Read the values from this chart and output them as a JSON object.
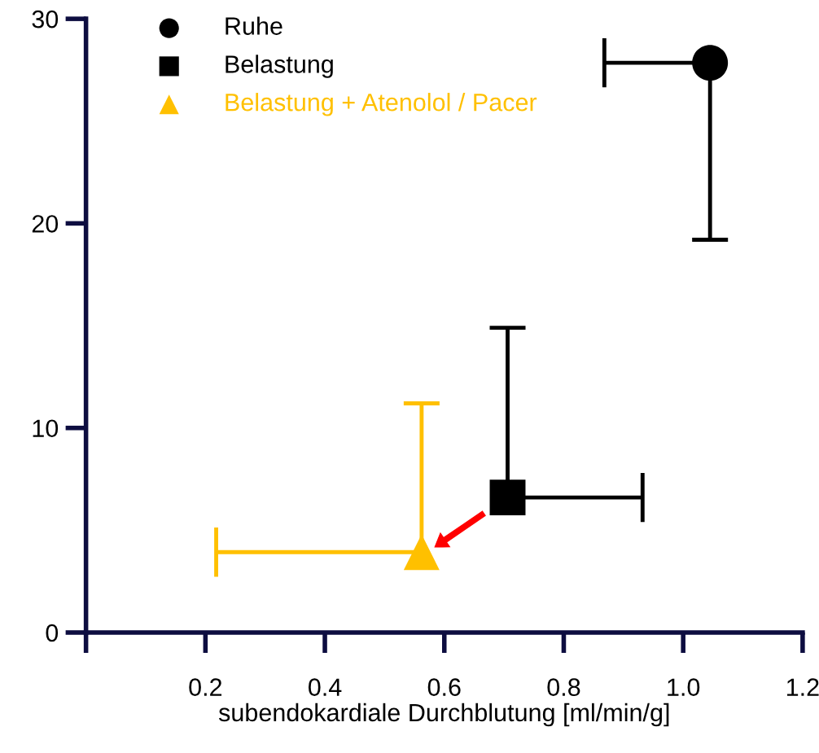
{
  "chart_data": {
    "type": "scatter",
    "xlabel": "subendokardiale Durchblutung [ml/min/g]",
    "xlim": [
      0,
      1.2
    ],
    "xticks": [
      {
        "value": 0,
        "label": null
      },
      0.2,
      0.4,
      0.6,
      0.8,
      {
        "value": 1.0,
        "label": "1.0"
      },
      1.2
    ],
    "ylim": [
      0,
      30
    ],
    "yticks": [
      0,
      10,
      20,
      30
    ],
    "grid": false,
    "legend": "top left",
    "series": [
      {
        "name": "Ruhe",
        "color": "#000000",
        "marker": "circle",
        "x": [
          1.045
        ],
        "values": [
          27.85
        ],
        "errors": [
          [
            19.2,
            27.85
          ]
        ],
        "xerrors": [
          [
            0.868,
            1.045
          ]
        ]
      },
      {
        "name": "Belastung",
        "color": "#000000",
        "marker": "square",
        "x": [
          0.706
        ],
        "values": [
          6.6
        ],
        "errors": [
          [
            6.6,
            14.9
          ]
        ],
        "xerrors": [
          [
            0.706,
            0.932
          ]
        ]
      },
      {
        "name": "Belastung + Atenolol / Pacer",
        "color": "#ffc000",
        "marker": "triangle",
        "x": [
          0.562
        ],
        "values": [
          3.93
        ],
        "errors": [
          [
            3.93,
            11.2
          ]
        ],
        "xerrors": [
          [
            0.218,
            0.562
          ]
        ]
      }
    ]
  }
}
